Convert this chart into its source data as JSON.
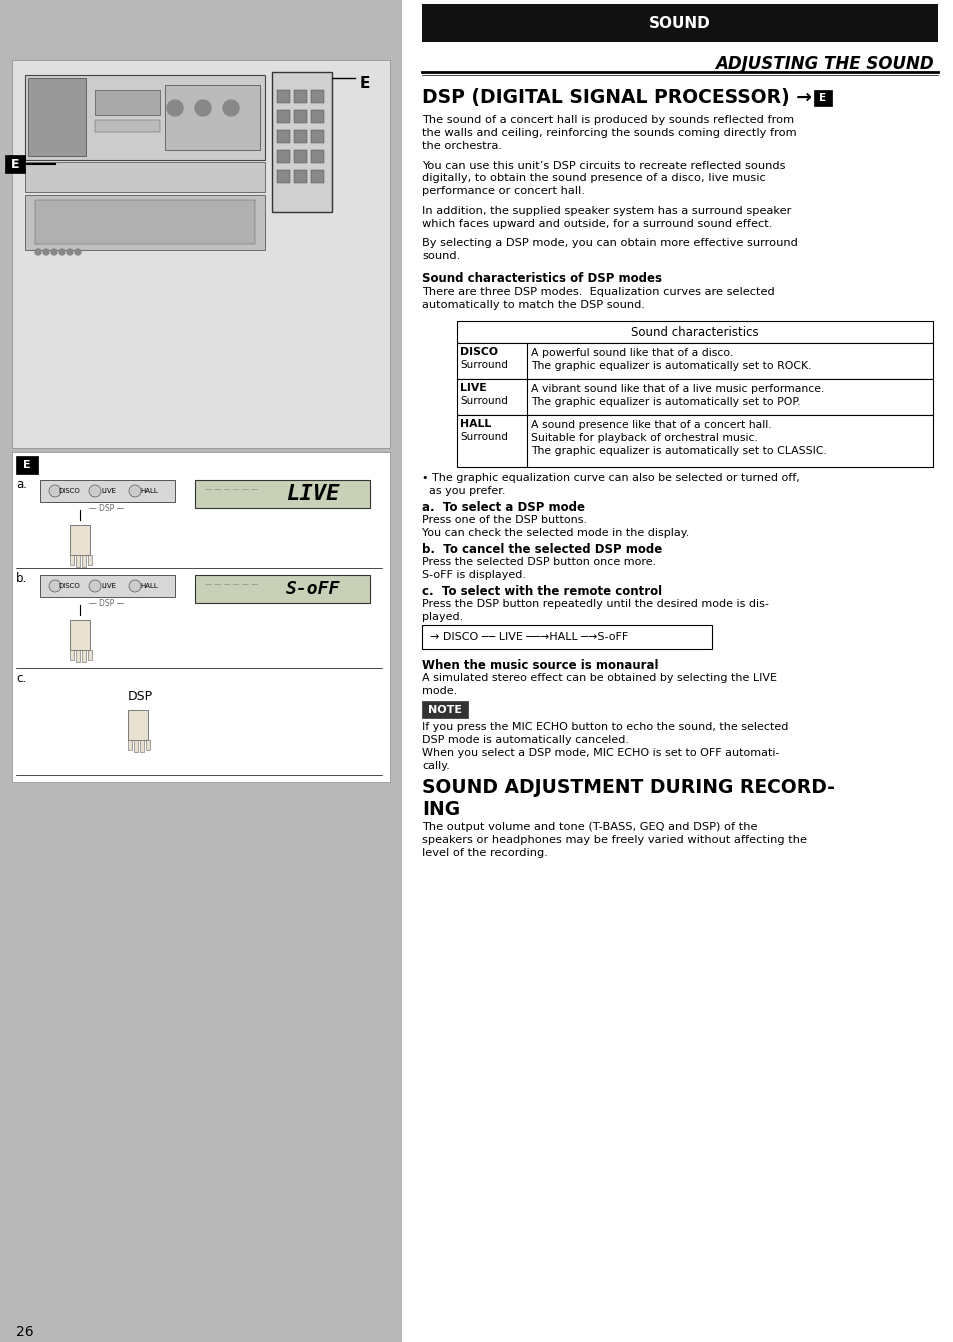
{
  "page_bg": "#ffffff",
  "left_panel_bg": "#b8b8b8",
  "header_bar_bg": "#111111",
  "header_bar_text": "SOUND",
  "header_bar_text_color": "#ffffff",
  "subtitle": "ADJUSTING THE SOUND",
  "section1_title": "DSP (DIGITAL SIGNAL PROCESSOR) → ",
  "body1": "The sound of a concert hall is produced by sounds reflected from\nthe walls and ceiling, reinforcing the sounds coming directly from\nthe orchestra.",
  "body2": "You can use this unit’s DSP circuits to recreate reflected sounds\ndigitally, to obtain the sound presence of a disco, live music\nperformance or concert hall.",
  "body3": "In addition, the supplied speaker system has a surround speaker\nwhich faces upward and outside, for a surround sound effect.",
  "body4": "By selecting a DSP mode, you can obtain more effective surround\nsound.",
  "char_subtitle": "Sound characteristics of DSP modes",
  "char_body": "There are three DSP modes.  Equalization curves are selected\nautomatically to match the DSP sound.",
  "table_header": "Sound characteristics",
  "table_col1": [
    "DISCO\nSurround",
    "LIVE\nSurround",
    "HALL\nSurround"
  ],
  "table_col2": [
    "A powerful sound like that of a disco.\nThe graphic equalizer is automatically set to ROCK.",
    "A vibrant sound like that of a live music performance.\nThe graphic equalizer is automatically set to POP.",
    "A sound presence like that of a concert hall.\nSuitable for playback of orchestral music.\nThe graphic equalizer is automatically set to CLASSIC."
  ],
  "bullet": "• The graphic equalization curve can also be selected or turned off,\n  as you prefer.",
  "a_title": "a.  To select a DSP mode",
  "a_body": "Press one of the DSP buttons.\nYou can check the selected mode in the display.",
  "b_title": "b.  To cancel the selected DSP mode",
  "b_body": "Press the selected DSP button once more.\nS-oFF is displayed.",
  "c_title": "c.  To select with the remote control",
  "c_body": "Press the DSP button repeatedly until the desired mode is dis-\nplayed.",
  "flow_text": "→ DISCO ── LIVE ──→HALL─→S-oFF",
  "monaural_title": "When the music source is monaural",
  "monaural_body": "A simulated stereo effect can be obtained by selecting the LIVE\nmode.",
  "note_label": "NOTE",
  "note_body": "If you press the MIC ECHO button to echo the sound, the selected\nDSP mode is automatically canceled.\nWhen you select a DSP mode, MIC ECHO is set to OFF automati-\ncally.",
  "s2_title": "SOUND ADJUSTMENT DURING RECORD-\nING",
  "s2_body": "The output volume and tone (T-BASS, GEQ and DSP) of the\nspeakers or headphones may be freely varied without affecting the\nlevel of the recording.",
  "page_num": "26"
}
